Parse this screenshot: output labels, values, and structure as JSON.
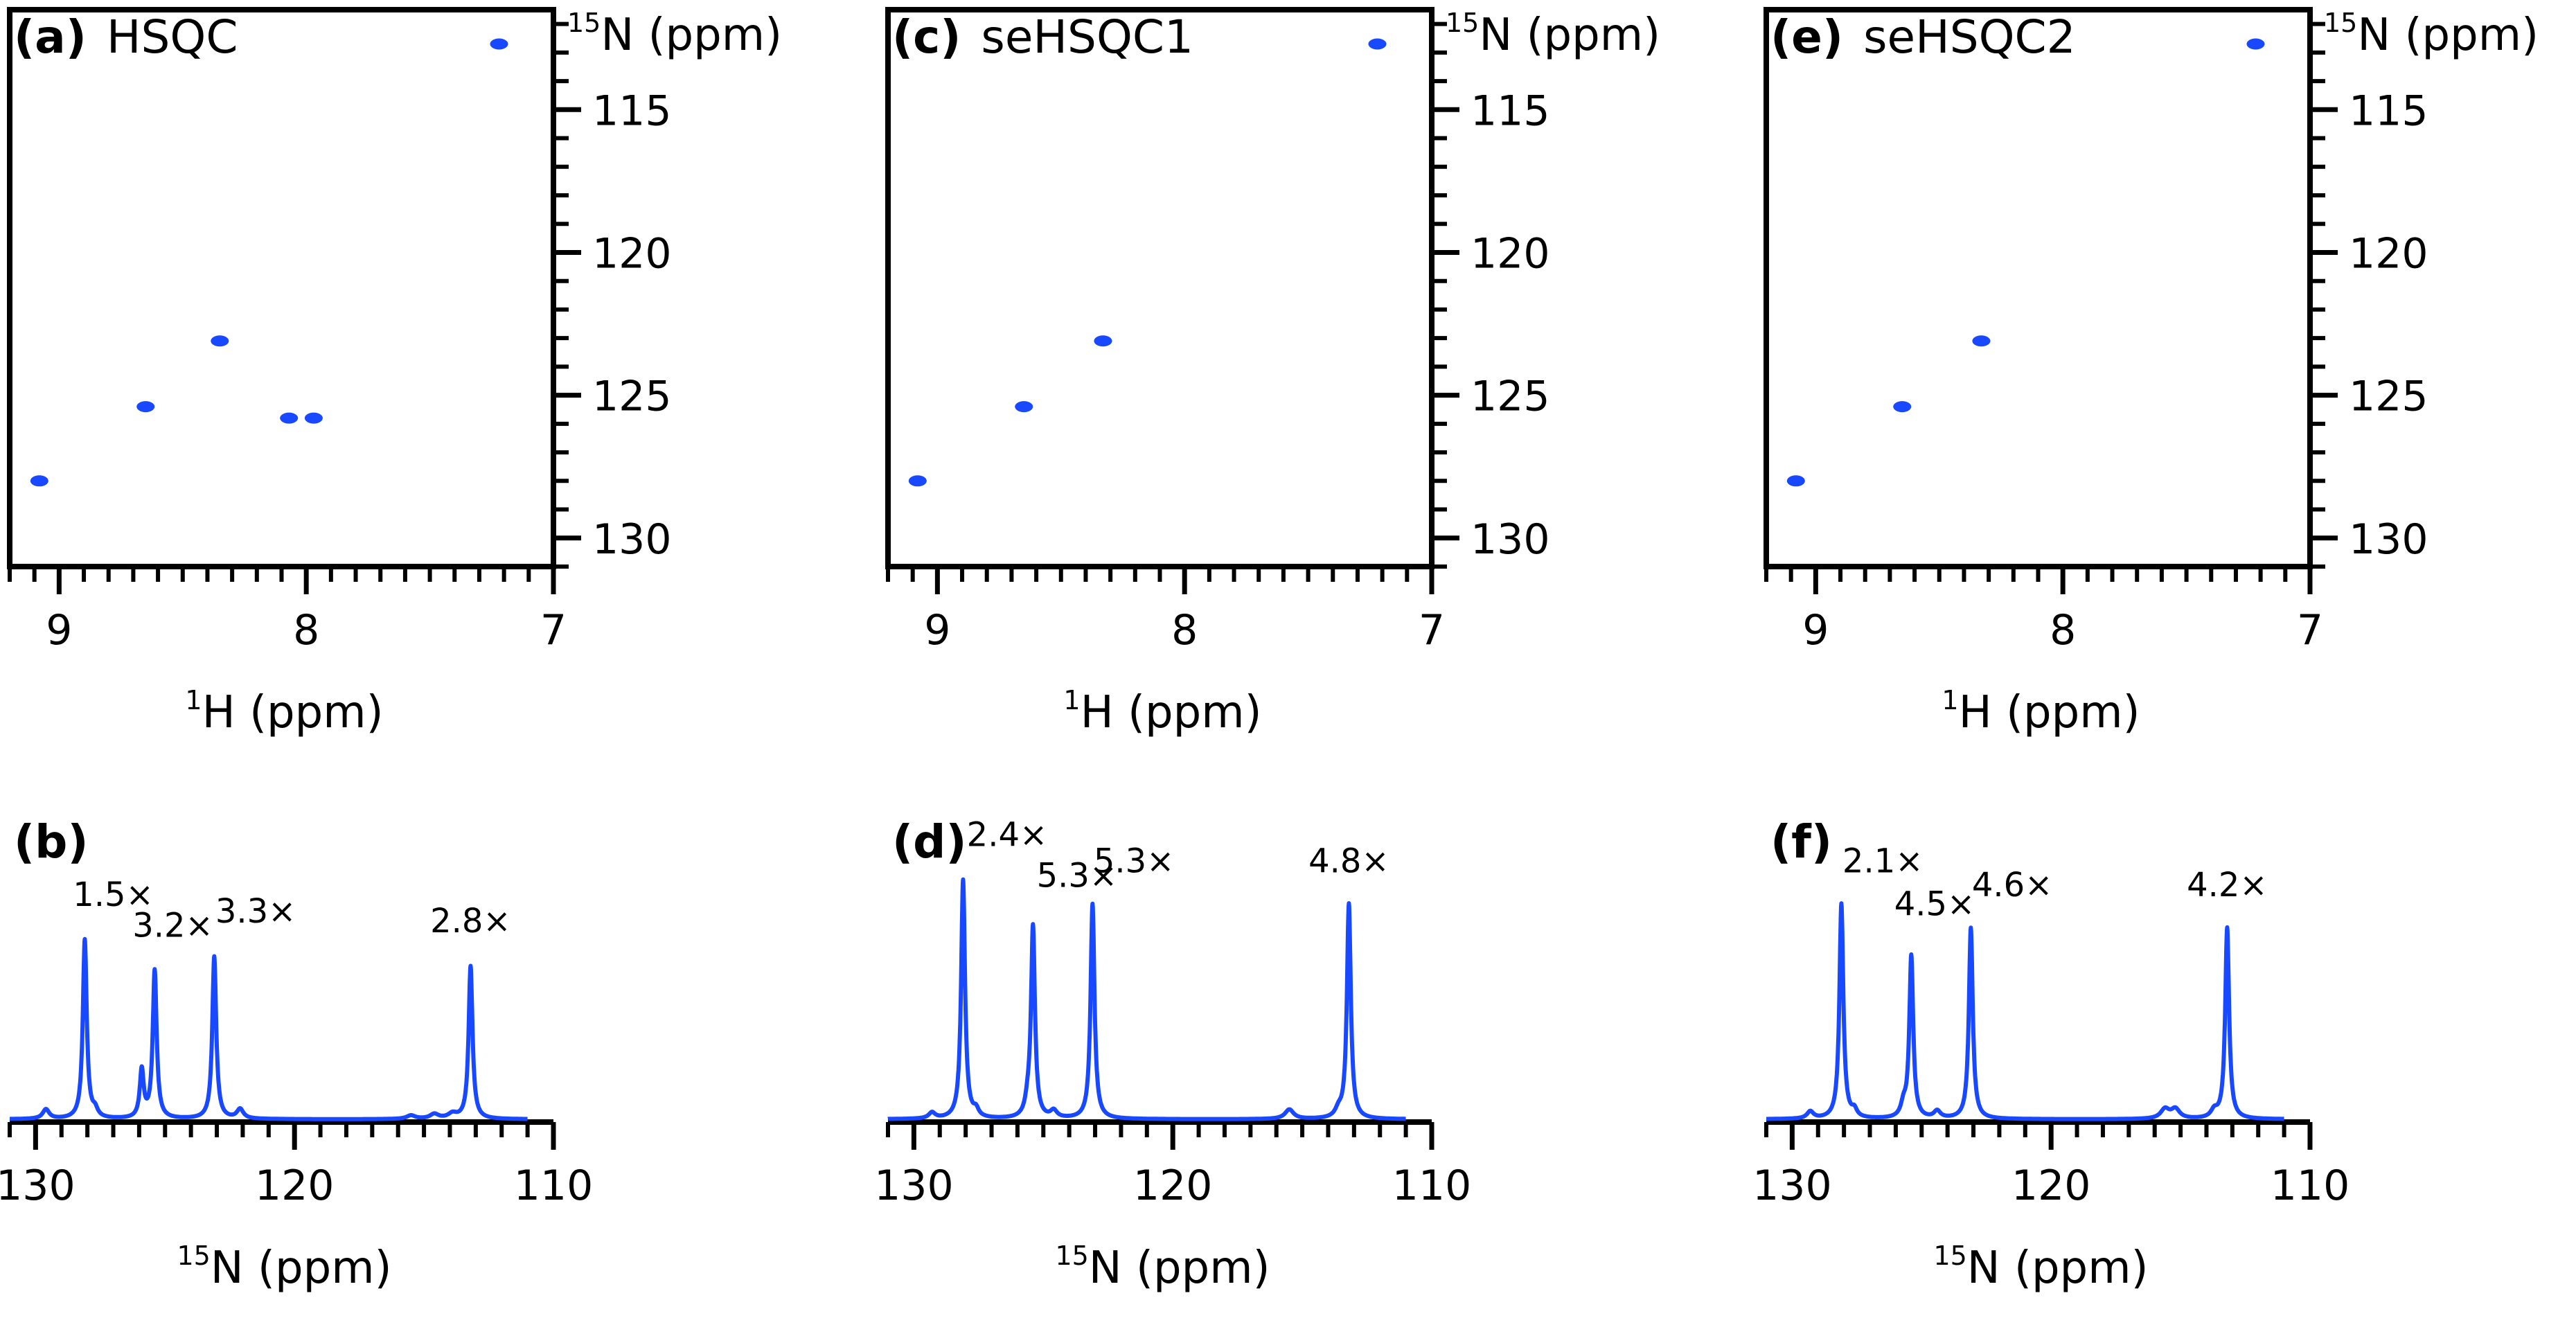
{
  "colors": {
    "data": "#1848ff",
    "axis": "#000000"
  },
  "chart_data": [
    {
      "id": "a",
      "type": "scatter",
      "tag": "(a)",
      "title": "HSQC",
      "xlabel_sup": "1",
      "xlabel_main": "H (ppm)",
      "ylabel_sup": "15",
      "ylabel_main": "N (ppm)",
      "xlim": [
        9.2,
        7.0
      ],
      "ylim": [
        111.5,
        131
      ],
      "xticks": [
        9,
        8,
        7
      ],
      "yticks": [
        115,
        120,
        125,
        130
      ],
      "points": [
        {
          "x": 9.08,
          "y": 128.0
        },
        {
          "x": 8.65,
          "y": 125.4
        },
        {
          "x": 8.35,
          "y": 123.1
        },
        {
          "x": 8.07,
          "y": 125.8
        },
        {
          "x": 7.97,
          "y": 125.8
        },
        {
          "x": 7.22,
          "y": 112.7
        }
      ]
    },
    {
      "id": "b",
      "type": "line",
      "tag": "(b)",
      "xlabel_sup": "15",
      "xlabel_main": "N (ppm)",
      "xlim": [
        131,
        110
      ],
      "xticks": [
        130,
        120,
        110
      ],
      "baseline_range": [
        131,
        111
      ],
      "peaks": [
        {
          "x": 129.6,
          "h": 0.04,
          "w": 0.15
        },
        {
          "x": 128.1,
          "h": 0.75,
          "w": 0.09
        },
        {
          "x": 127.7,
          "h": 0.03,
          "w": 0.12
        },
        {
          "x": 125.9,
          "h": 0.2,
          "w": 0.09
        },
        {
          "x": 125.4,
          "h": 0.62,
          "w": 0.09
        },
        {
          "x": 123.1,
          "h": 0.68,
          "w": 0.09
        },
        {
          "x": 122.1,
          "h": 0.04,
          "w": 0.15
        },
        {
          "x": 115.5,
          "h": 0.015,
          "w": 0.2
        },
        {
          "x": 114.6,
          "h": 0.02,
          "w": 0.2
        },
        {
          "x": 113.9,
          "h": 0.02,
          "w": 0.2
        },
        {
          "x": 113.2,
          "h": 0.64,
          "w": 0.09
        }
      ],
      "labels": [
        {
          "text": "1.5×",
          "x": 127.0,
          "h": 0.87
        },
        {
          "text": "3.2×",
          "x": 124.7,
          "h": 0.74
        },
        {
          "text": "3.3×",
          "x": 121.5,
          "h": 0.8
        },
        {
          "text": "2.8×",
          "x": 113.2,
          "h": 0.76
        }
      ]
    },
    {
      "id": "c",
      "type": "scatter",
      "tag": "(c)",
      "title": "seHSQC1",
      "xlabel_sup": "1",
      "xlabel_main": "H (ppm)",
      "ylabel_sup": "15",
      "ylabel_main": "N (ppm)",
      "xlim": [
        9.2,
        7.0
      ],
      "ylim": [
        111.5,
        131
      ],
      "xticks": [
        9,
        8,
        7
      ],
      "yticks": [
        115,
        120,
        125,
        130
      ],
      "points": [
        {
          "x": 9.08,
          "y": 128.0
        },
        {
          "x": 8.65,
          "y": 125.4
        },
        {
          "x": 8.33,
          "y": 123.1
        },
        {
          "x": 7.22,
          "y": 112.7
        }
      ]
    },
    {
      "id": "d",
      "type": "line",
      "tag": "(d)",
      "xlabel_sup": "15",
      "xlabel_main": "N (ppm)",
      "xlim": [
        131,
        110
      ],
      "xticks": [
        130,
        120,
        110
      ],
      "baseline_range": [
        131,
        111
      ],
      "peaks": [
        {
          "x": 129.3,
          "h": 0.025,
          "w": 0.15
        },
        {
          "x": 128.1,
          "h": 1.0,
          "w": 0.09
        },
        {
          "x": 127.6,
          "h": 0.03,
          "w": 0.12
        },
        {
          "x": 125.6,
          "h": 0.05,
          "w": 0.12
        },
        {
          "x": 125.4,
          "h": 0.8,
          "w": 0.09
        },
        {
          "x": 124.6,
          "h": 0.03,
          "w": 0.15
        },
        {
          "x": 123.1,
          "h": 0.9,
          "w": 0.09
        },
        {
          "x": 115.5,
          "h": 0.04,
          "w": 0.2
        },
        {
          "x": 113.6,
          "h": 0.03,
          "w": 0.15
        },
        {
          "x": 113.2,
          "h": 0.9,
          "w": 0.09
        }
      ],
      "labels": [
        {
          "text": "2.4×",
          "x": 126.4,
          "h": 1.12
        },
        {
          "text": "5.3×",
          "x": 123.7,
          "h": 0.95
        },
        {
          "text": "5.3×",
          "x": 121.5,
          "h": 1.01
        },
        {
          "text": "4.8×",
          "x": 113.2,
          "h": 1.01
        }
      ]
    },
    {
      "id": "e",
      "type": "scatter",
      "tag": "(e)",
      "title": "seHSQC2",
      "xlabel_sup": "1",
      "xlabel_main": "H (ppm)",
      "ylabel_sup": "15",
      "ylabel_main": "N (ppm)",
      "xlim": [
        9.2,
        7.0
      ],
      "ylim": [
        111.5,
        131
      ],
      "xticks": [
        9,
        8,
        7
      ],
      "yticks": [
        115,
        120,
        125,
        130
      ],
      "points": [
        {
          "x": 9.08,
          "y": 128.0
        },
        {
          "x": 8.65,
          "y": 125.4
        },
        {
          "x": 8.33,
          "y": 123.1
        },
        {
          "x": 7.22,
          "y": 112.7
        }
      ]
    },
    {
      "id": "f",
      "type": "line",
      "tag": "(f)",
      "xlabel_sup": "15",
      "xlabel_main": "N (ppm)",
      "xlim": [
        131,
        110
      ],
      "xticks": [
        130,
        120,
        110
      ],
      "baseline_range": [
        131,
        111
      ],
      "peaks": [
        {
          "x": 129.3,
          "h": 0.03,
          "w": 0.15
        },
        {
          "x": 128.1,
          "h": 0.9,
          "w": 0.09
        },
        {
          "x": 127.6,
          "h": 0.03,
          "w": 0.12
        },
        {
          "x": 125.7,
          "h": 0.05,
          "w": 0.12
        },
        {
          "x": 125.4,
          "h": 0.68,
          "w": 0.09
        },
        {
          "x": 124.4,
          "h": 0.03,
          "w": 0.15
        },
        {
          "x": 123.1,
          "h": 0.8,
          "w": 0.09
        },
        {
          "x": 115.6,
          "h": 0.04,
          "w": 0.2
        },
        {
          "x": 115.2,
          "h": 0.04,
          "w": 0.2
        },
        {
          "x": 113.7,
          "h": 0.03,
          "w": 0.15
        },
        {
          "x": 113.2,
          "h": 0.8,
          "w": 0.09
        }
      ],
      "labels": [
        {
          "text": "2.1×",
          "x": 126.5,
          "h": 1.01
        },
        {
          "text": "4.5×",
          "x": 124.5,
          "h": 0.83
        },
        {
          "text": "4.6×",
          "x": 121.5,
          "h": 0.91
        },
        {
          "text": "4.2×",
          "x": 113.2,
          "h": 0.91
        }
      ]
    }
  ]
}
